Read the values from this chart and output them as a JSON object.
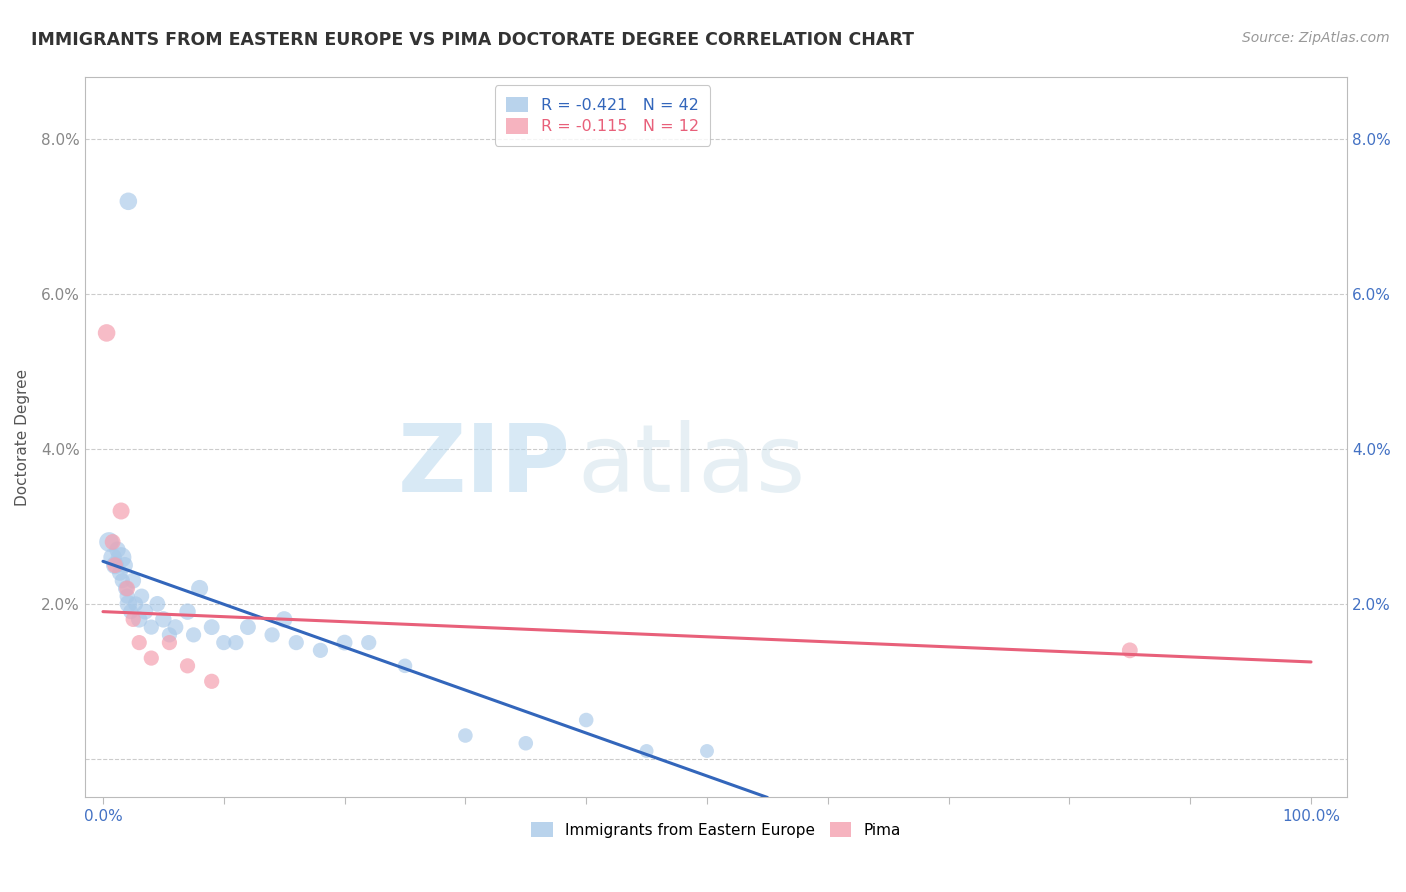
{
  "title": "IMMIGRANTS FROM EASTERN EUROPE VS PIMA DOCTORATE DEGREE CORRELATION CHART",
  "source": "Source: ZipAtlas.com",
  "ylabel": "Doctorate Degree",
  "legend_blue_r": "R = -0.421",
  "legend_blue_n": "N = 42",
  "legend_pink_r": "R = -0.115",
  "legend_pink_n": "N = 12",
  "legend_blue_label": "Immigrants from Eastern Europe",
  "legend_pink_label": "Pima",
  "blue_color": "#a8c8e8",
  "pink_color": "#f4a0b0",
  "blue_line_color": "#3366bb",
  "pink_line_color": "#e8607a",
  "watermark_zip": "ZIP",
  "watermark_atlas": "atlas",
  "ytick_vals": [
    0.0,
    2.0,
    4.0,
    6.0,
    8.0
  ],
  "ylim": [
    -0.5,
    8.8
  ],
  "xlim": [
    -1.5,
    103.0
  ],
  "blue_scatter_x": [
    2.1,
    0.5,
    0.8,
    1.0,
    1.2,
    1.4,
    1.5,
    1.6,
    1.8,
    1.9,
    2.0,
    2.1,
    2.3,
    2.5,
    2.7,
    3.0,
    3.2,
    3.5,
    4.0,
    4.5,
    5.0,
    5.5,
    6.0,
    7.0,
    7.5,
    8.0,
    9.0,
    10.0,
    11.0,
    12.0,
    14.0,
    15.0,
    16.0,
    18.0,
    20.0,
    22.0,
    25.0,
    30.0,
    35.0,
    40.0,
    45.0,
    50.0
  ],
  "blue_scatter_y": [
    7.2,
    2.8,
    2.6,
    2.5,
    2.7,
    2.4,
    2.6,
    2.3,
    2.5,
    2.2,
    2.1,
    2.0,
    1.9,
    2.3,
    2.0,
    1.8,
    2.1,
    1.9,
    1.7,
    2.0,
    1.8,
    1.6,
    1.7,
    1.9,
    1.6,
    2.2,
    1.7,
    1.5,
    1.5,
    1.7,
    1.6,
    1.8,
    1.5,
    1.4,
    1.5,
    1.5,
    1.2,
    0.3,
    0.2,
    0.5,
    0.1,
    0.1
  ],
  "blue_scatter_sizes": [
    160,
    200,
    180,
    170,
    140,
    130,
    220,
    120,
    140,
    130,
    120,
    160,
    120,
    130,
    120,
    140,
    120,
    130,
    120,
    130,
    140,
    120,
    130,
    140,
    120,
    150,
    130,
    120,
    120,
    130,
    120,
    140,
    120,
    120,
    130,
    120,
    110,
    110,
    110,
    110,
    100,
    100
  ],
  "pink_scatter_x": [
    0.3,
    0.8,
    1.0,
    1.5,
    2.0,
    2.5,
    3.0,
    4.0,
    5.5,
    7.0,
    9.0,
    85.0
  ],
  "pink_scatter_y": [
    5.5,
    2.8,
    2.5,
    3.2,
    2.2,
    1.8,
    1.5,
    1.3,
    1.5,
    1.2,
    1.0,
    1.4
  ],
  "pink_scatter_sizes": [
    160,
    130,
    130,
    150,
    130,
    120,
    120,
    120,
    120,
    120,
    120,
    130
  ],
  "blue_line_x0": 0.0,
  "blue_line_y0": 2.55,
  "blue_line_x1": 55.0,
  "blue_line_y1": -0.5,
  "pink_line_x0": 0.0,
  "pink_line_y0": 1.9,
  "pink_line_x1": 100.0,
  "pink_line_y1": 1.25
}
